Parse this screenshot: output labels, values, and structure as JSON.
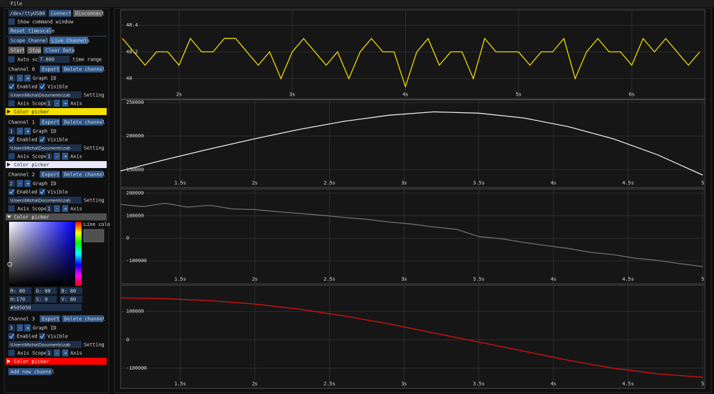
{
  "panel": {
    "menu": "File",
    "port": "/dev/ttyUSB0",
    "connect": "Connect",
    "disconnect": "Disconnect",
    "show_command_window": {
      "label": "Show command window",
      "checked": false
    },
    "reset_timescale": "Reset timescale",
    "tabs": [
      "Scope Channels",
      "Live Channels"
    ],
    "start": "Start",
    "stop": "Stop",
    "clear": "Clear Data",
    "auto_scroll": {
      "label": "Auto scroll",
      "checked": false
    },
    "time_range": "7.000",
    "time_range_label": "time range",
    "channels": [
      {
        "title": "Channel 0",
        "export": "Export",
        "delete": "Delete channel",
        "graph_id": "0",
        "graph_minus": "-",
        "graph_plus": "+",
        "graph_id_label": "Graph ID",
        "enabled": {
          "label": "Enabled",
          "checked": true
        },
        "visible": {
          "label": "Visible",
          "checked": true
        },
        "path": ":\\Users\\Micha\\Documents\\zab",
        "setting": "Setting",
        "axis_scope": {
          "label": "Axis Scope",
          "checked": false
        },
        "axis_value": "1",
        "axis_minus": "-",
        "axis_plus": "+",
        "axis": "Axis",
        "color_picker": "Color picker",
        "color": "#f5e000",
        "expanded": false
      },
      {
        "title": "Channel 1",
        "export": "Export",
        "delete": "Delete channel",
        "graph_id": "1",
        "graph_minus": "-",
        "graph_plus": "+",
        "graph_id_label": "Graph ID",
        "enabled": {
          "label": "Enabled",
          "checked": true
        },
        "visible": {
          "label": "Visible",
          "checked": true
        },
        "path": ":\\Users\\Micha\\Documents\\zab",
        "setting": "Setting",
        "axis_scope": {
          "label": "Axis Scope",
          "checked": false
        },
        "axis_value": "1",
        "axis_minus": "-",
        "axis_plus": "+",
        "axis": "Axis",
        "color_picker": "Color picker",
        "color": "#e8e8ff",
        "expanded": false
      },
      {
        "title": "Channel 2",
        "export": "Export",
        "delete": "Delete channel",
        "graph_id": "2",
        "graph_minus": "-",
        "graph_plus": "+",
        "graph_id_label": "Graph ID",
        "enabled": {
          "label": "Enabled",
          "checked": true
        },
        "visible": {
          "label": "Visible",
          "checked": true
        },
        "path": ":\\Users\\Micha\\Documents\\zab",
        "setting": "Setting",
        "axis_scope": {
          "label": "Axis Scope",
          "checked": false
        },
        "axis_value": "1",
        "axis_minus": "-",
        "axis_plus": "+",
        "axis": "Axis",
        "color_picker": "Color picker",
        "color": "#505050",
        "expanded": true,
        "picker": {
          "line_color": "Line colo",
          "fields": [
            "R: 80",
            "G: 80",
            "B: 80",
            "H:170",
            "S:  0",
            "V: 80"
          ],
          "hex": "#505050"
        }
      },
      {
        "title": "Channel 3",
        "export": "Export",
        "delete": "Delete channel",
        "graph_id": "3",
        "graph_minus": "-",
        "graph_plus": "+",
        "graph_id_label": "Graph ID",
        "enabled": {
          "label": "Enabled",
          "checked": true
        },
        "visible": {
          "label": "Visible",
          "checked": true
        },
        "path": ":\\Users\\Micha\\Documents\\zab",
        "setting": "Setting",
        "axis_scope": {
          "label": "Axis Scope",
          "checked": false
        },
        "axis_value": "1",
        "axis_minus": "-",
        "axis_plus": "+",
        "axis": "Axis",
        "color_picker": "Color picker",
        "color": "#ff0000",
        "expanded": false
      }
    ],
    "add_channel": "Add new channel"
  },
  "chart_data": [
    {
      "type": "line",
      "color": "#f0dc00",
      "x": [
        1.5,
        1.6,
        1.7,
        1.8,
        1.9,
        2.0,
        2.1,
        2.2,
        2.3,
        2.4,
        2.5,
        2.6,
        2.7,
        2.8,
        2.9,
        3.0,
        3.1,
        3.2,
        3.3,
        3.4,
        3.5,
        3.6,
        3.7,
        3.8,
        3.9,
        4.0,
        4.1,
        4.2,
        4.3,
        4.4,
        4.5,
        4.6,
        4.7,
        4.8,
        4.9,
        5.0,
        5.1,
        5.2,
        5.3,
        5.4,
        5.5,
        5.6,
        5.7,
        5.8,
        5.9,
        6.0,
        6.1,
        6.2,
        6.3,
        6.4,
        6.5,
        6.6
      ],
      "values": [
        48.3,
        48.2,
        48.1,
        48.2,
        48.2,
        48.1,
        48.3,
        48.2,
        48.2,
        48.3,
        48.3,
        48.2,
        48.1,
        48.2,
        48.0,
        48.2,
        48.3,
        48.2,
        48.1,
        48.2,
        48.0,
        48.2,
        48.3,
        48.2,
        48.2,
        47.94,
        48.2,
        48.3,
        48.1,
        48.2,
        48.2,
        48.0,
        48.3,
        48.2,
        48.2,
        48.2,
        48.1,
        48.2,
        48.2,
        48.3,
        48.0,
        48.2,
        48.3,
        48.2,
        48.2,
        48.1,
        48.3,
        48.2,
        48.3,
        48.2,
        48.1,
        48.2
      ],
      "xlim": [
        1.49,
        6.64
      ],
      "ylim": [
        47.92,
        48.51
      ],
      "xticks": [
        {
          "value": 2,
          "label": "2s"
        },
        {
          "value": 3,
          "label": "3s"
        },
        {
          "value": 4,
          "label": "4s"
        },
        {
          "value": 5,
          "label": "5s"
        },
        {
          "value": 6,
          "label": "6s"
        }
      ],
      "yticks": [
        48,
        48.2,
        48.4
      ],
      "grid": true
    },
    {
      "type": "line",
      "color": "#e8e8f0",
      "x": [
        1.1,
        1.4,
        1.7,
        2.0,
        2.3,
        2.6,
        2.9,
        3.2,
        3.5,
        3.8,
        4.1,
        4.4,
        4.7,
        5.0
      ],
      "values": [
        148000,
        165000,
        181000,
        196000,
        210000,
        222000,
        231000,
        236000,
        234000,
        227000,
        214000,
        196000,
        172000,
        142000
      ],
      "xlim": [
        1.106,
        5.01
      ],
      "ylim": [
        138000,
        253000
      ],
      "xticks": [
        {
          "value": 1.5,
          "label": "1.5s"
        },
        {
          "value": 2,
          "label": "2s"
        },
        {
          "value": 2.5,
          "label": "2.5s"
        },
        {
          "value": 3,
          "label": "3s"
        },
        {
          "value": 3.5,
          "label": "3.5s"
        },
        {
          "value": 4,
          "label": "4s"
        },
        {
          "value": 4.5,
          "label": "4.5s"
        },
        5
      ],
      "yticks": [
        150000,
        200000,
        250000
      ],
      "grid": true
    },
    {
      "type": "line",
      "color": "#707070",
      "x": [
        1.1,
        1.25,
        1.4,
        1.55,
        1.7,
        1.85,
        2.0,
        2.15,
        2.3,
        2.45,
        2.6,
        2.75,
        2.9,
        3.05,
        3.2,
        3.35,
        3.5,
        3.65,
        3.8,
        3.95,
        4.1,
        4.25,
        4.4,
        4.55,
        4.7,
        4.85,
        5.0
      ],
      "values": [
        150000,
        140000,
        155000,
        138000,
        146000,
        130000,
        127000,
        118000,
        110000,
        102000,
        92000,
        84000,
        72000,
        63000,
        50000,
        40000,
        8000,
        -2000,
        -18000,
        -32000,
        -45000,
        -62000,
        -72000,
        -88000,
        -98000,
        -112000,
        -125000
      ],
      "xlim": [
        1.106,
        5.01
      ],
      "ylim": [
        -158000,
        215000
      ],
      "xticks": [
        {
          "value": 1.5,
          "label": "1.5s"
        },
        {
          "value": 2,
          "label": "2s"
        },
        {
          "value": 2.5,
          "label": "2.5s"
        },
        {
          "value": 3,
          "label": "3s"
        },
        {
          "value": 3.5,
          "label": "3.5s"
        },
        {
          "value": 4,
          "label": "4s"
        },
        {
          "value": 4.5,
          "label": "4.5s"
        },
        5
      ],
      "yticks": [
        -100000,
        0,
        100000,
        200000
      ],
      "grid": true
    },
    {
      "type": "line",
      "color": "#e01010",
      "x": [
        1.1,
        1.4,
        1.7,
        2.0,
        2.3,
        2.6,
        2.9,
        3.2,
        3.5,
        3.8,
        4.1,
        4.4,
        4.7,
        5.0
      ],
      "values": [
        148000,
        145000,
        138000,
        126000,
        108000,
        84000,
        56000,
        24000,
        -8000,
        -40000,
        -72000,
        -100000,
        -120000,
        -132000
      ],
      "xlim": [
        1.106,
        5.01
      ],
      "ylim": [
        -137000,
        190000
      ],
      "xticks": [
        {
          "value": 1.5,
          "label": "1.5s"
        },
        {
          "value": 2,
          "label": "2s"
        },
        {
          "value": 2.5,
          "label": "2.5s"
        },
        {
          "value": 3,
          "label": "3s"
        },
        {
          "value": 3.5,
          "label": "3.5s"
        },
        {
          "value": 4,
          "label": "4s"
        },
        {
          "value": 4.5,
          "label": "4.5s"
        },
        5
      ],
      "yticks": [
        -100000,
        0,
        100000
      ],
      "grid": true
    }
  ]
}
